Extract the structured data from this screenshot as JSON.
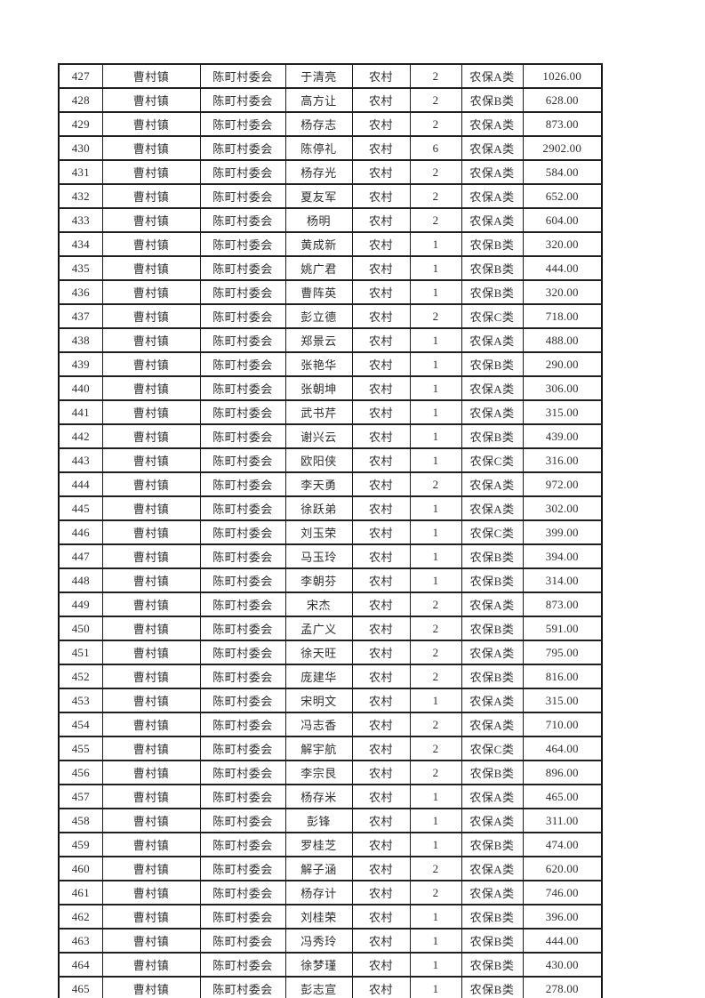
{
  "colors": {
    "page_background": "#ffffff",
    "border": "#1f1f1f",
    "text": "#2e2e2e"
  },
  "table": {
    "column_keys": [
      "serial-number",
      "town",
      "village-committee",
      "person-name",
      "residence-type",
      "person-count",
      "insurance-category",
      "amount"
    ],
    "rows": [
      [
        "427",
        "曹村镇",
        "陈町村委会",
        "于清亮",
        "农村",
        "2",
        "农保A类",
        "1026.00"
      ],
      [
        "428",
        "曹村镇",
        "陈町村委会",
        "高方让",
        "农村",
        "2",
        "农保B类",
        "628.00"
      ],
      [
        "429",
        "曹村镇",
        "陈町村委会",
        "杨存志",
        "农村",
        "2",
        "农保A类",
        "873.00"
      ],
      [
        "430",
        "曹村镇",
        "陈町村委会",
        "陈停礼",
        "农村",
        "6",
        "农保A类",
        "2902.00"
      ],
      [
        "431",
        "曹村镇",
        "陈町村委会",
        "杨存光",
        "农村",
        "2",
        "农保A类",
        "584.00"
      ],
      [
        "432",
        "曹村镇",
        "陈町村委会",
        "夏友军",
        "农村",
        "2",
        "农保A类",
        "652.00"
      ],
      [
        "433",
        "曹村镇",
        "陈町村委会",
        "杨明",
        "农村",
        "2",
        "农保A类",
        "604.00"
      ],
      [
        "434",
        "曹村镇",
        "陈町村委会",
        "黄成新",
        "农村",
        "1",
        "农保B类",
        "320.00"
      ],
      [
        "435",
        "曹村镇",
        "陈町村委会",
        "姚广君",
        "农村",
        "1",
        "农保B类",
        "444.00"
      ],
      [
        "436",
        "曹村镇",
        "陈町村委会",
        "曹阵英",
        "农村",
        "1",
        "农保B类",
        "320.00"
      ],
      [
        "437",
        "曹村镇",
        "陈町村委会",
        "彭立德",
        "农村",
        "2",
        "农保C类",
        "718.00"
      ],
      [
        "438",
        "曹村镇",
        "陈町村委会",
        "郑景云",
        "农村",
        "1",
        "农保A类",
        "488.00"
      ],
      [
        "439",
        "曹村镇",
        "陈町村委会",
        "张艳华",
        "农村",
        "1",
        "农保B类",
        "290.00"
      ],
      [
        "440",
        "曹村镇",
        "陈町村委会",
        "张朝坤",
        "农村",
        "1",
        "农保A类",
        "306.00"
      ],
      [
        "441",
        "曹村镇",
        "陈町村委会",
        "武书芹",
        "农村",
        "1",
        "农保A类",
        "315.00"
      ],
      [
        "442",
        "曹村镇",
        "陈町村委会",
        "谢兴云",
        "农村",
        "1",
        "农保B类",
        "439.00"
      ],
      [
        "443",
        "曹村镇",
        "陈町村委会",
        "欧阳侠",
        "农村",
        "1",
        "农保C类",
        "316.00"
      ],
      [
        "444",
        "曹村镇",
        "陈町村委会",
        "李天勇",
        "农村",
        "2",
        "农保A类",
        "972.00"
      ],
      [
        "445",
        "曹村镇",
        "陈町村委会",
        "徐跃弟",
        "农村",
        "1",
        "农保A类",
        "302.00"
      ],
      [
        "446",
        "曹村镇",
        "陈町村委会",
        "刘玉荣",
        "农村",
        "1",
        "农保C类",
        "399.00"
      ],
      [
        "447",
        "曹村镇",
        "陈町村委会",
        "马玉玲",
        "农村",
        "1",
        "农保B类",
        "394.00"
      ],
      [
        "448",
        "曹村镇",
        "陈町村委会",
        "李朝芬",
        "农村",
        "1",
        "农保B类",
        "314.00"
      ],
      [
        "449",
        "曹村镇",
        "陈町村委会",
        "宋杰",
        "农村",
        "2",
        "农保A类",
        "873.00"
      ],
      [
        "450",
        "曹村镇",
        "陈町村委会",
        "孟广义",
        "农村",
        "2",
        "农保B类",
        "591.00"
      ],
      [
        "451",
        "曹村镇",
        "陈町村委会",
        "徐天旺",
        "农村",
        "2",
        "农保A类",
        "795.00"
      ],
      [
        "452",
        "曹村镇",
        "陈町村委会",
        "庞建华",
        "农村",
        "2",
        "农保B类",
        "816.00"
      ],
      [
        "453",
        "曹村镇",
        "陈町村委会",
        "宋明文",
        "农村",
        "1",
        "农保A类",
        "315.00"
      ],
      [
        "454",
        "曹村镇",
        "陈町村委会",
        "冯志香",
        "农村",
        "2",
        "农保A类",
        "710.00"
      ],
      [
        "455",
        "曹村镇",
        "陈町村委会",
        "解宇航",
        "农村",
        "2",
        "农保C类",
        "464.00"
      ],
      [
        "456",
        "曹村镇",
        "陈町村委会",
        "李宗艮",
        "农村",
        "2",
        "农保B类",
        "896.00"
      ],
      [
        "457",
        "曹村镇",
        "陈町村委会",
        "杨存米",
        "农村",
        "1",
        "农保A类",
        "465.00"
      ],
      [
        "458",
        "曹村镇",
        "陈町村委会",
        "彭锋",
        "农村",
        "1",
        "农保A类",
        "311.00"
      ],
      [
        "459",
        "曹村镇",
        "陈町村委会",
        "罗桂芝",
        "农村",
        "1",
        "农保B类",
        "474.00"
      ],
      [
        "460",
        "曹村镇",
        "陈町村委会",
        "解子涵",
        "农村",
        "2",
        "农保A类",
        "620.00"
      ],
      [
        "461",
        "曹村镇",
        "陈町村委会",
        "杨存计",
        "农村",
        "2",
        "农保A类",
        "746.00"
      ],
      [
        "462",
        "曹村镇",
        "陈町村委会",
        "刘桂荣",
        "农村",
        "1",
        "农保B类",
        "396.00"
      ],
      [
        "463",
        "曹村镇",
        "陈町村委会",
        "冯秀玲",
        "农村",
        "1",
        "农保B类",
        "444.00"
      ],
      [
        "464",
        "曹村镇",
        "陈町村委会",
        "徐梦瑾",
        "农村",
        "1",
        "农保B类",
        "430.00"
      ],
      [
        "465",
        "曹村镇",
        "陈町村委会",
        "彭志宣",
        "农村",
        "1",
        "农保B类",
        "278.00"
      ]
    ]
  }
}
